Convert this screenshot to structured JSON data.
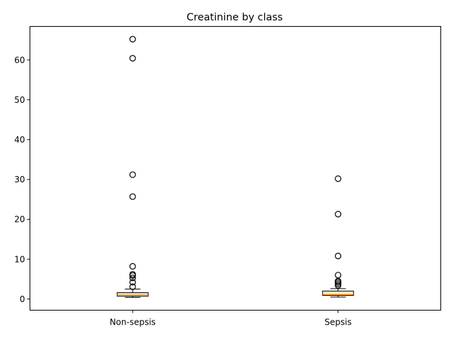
{
  "chart_data": {
    "type": "box",
    "title": "Creatinine by class",
    "xlabel": "",
    "ylabel": "",
    "categories": [
      "Non-sepsis",
      "Sepsis"
    ],
    "ylim": [
      -2.8,
      68.4
    ],
    "yticks": [
      0,
      10,
      20,
      30,
      40,
      50,
      60
    ],
    "grid": false,
    "boxes": [
      {
        "category": "Non-sepsis",
        "whisker_low": 0.4,
        "q1": 0.7,
        "median": 1.0,
        "q3": 1.6,
        "whisker_high": 2.5,
        "outliers": [
          3.1,
          4.2,
          5.3,
          5.9,
          6.2,
          8.2,
          25.7,
          31.2,
          60.4,
          65.2
        ]
      },
      {
        "category": "Sepsis",
        "whisker_low": 0.5,
        "q1": 0.9,
        "median": 1.1,
        "q3": 2.0,
        "whisker_high": 2.6,
        "outliers": [
          3.4,
          3.8,
          4.2,
          4.5,
          6.0,
          10.8,
          21.3,
          30.2
        ]
      }
    ],
    "colors": {
      "box_fill": "#ffe5b4",
      "box_edge": "#000000",
      "median": "#ff7f0e",
      "outlier_edge": "#000000"
    }
  }
}
